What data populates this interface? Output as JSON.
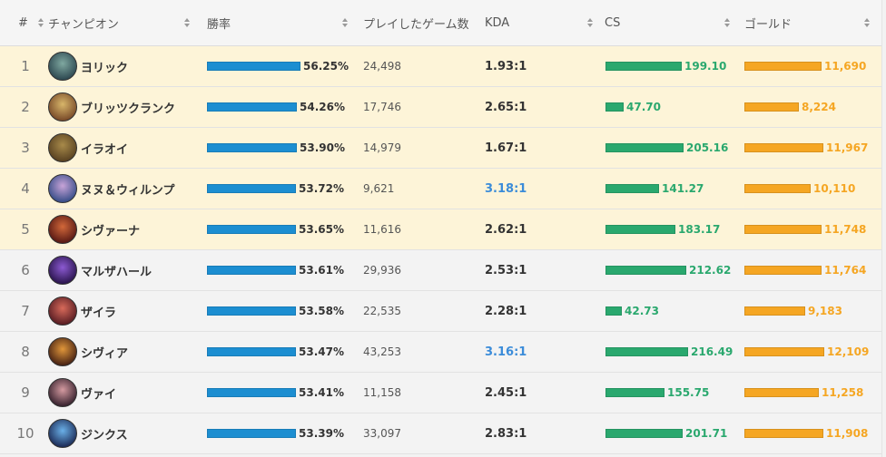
{
  "header": {
    "rank": "#",
    "champion": "チャンピオン",
    "winrate": "勝率",
    "games": "プレイしたゲーム数",
    "kda": "KDA",
    "cs": "CS",
    "gold": "ゴールド"
  },
  "colors": {
    "winrate_bar": "#1c8ed1",
    "cs_bar": "#2aa86e",
    "gold_bar": "#f5a623",
    "kda_highlight": "#3b8cd9",
    "top_row_bg": "#fdf4d8"
  },
  "rows": [
    {
      "rank": "1",
      "name": "ヨリック",
      "winrate": "56.25%",
      "winrate_value": 56.25,
      "games": "24,498",
      "kda": "1.93:1",
      "kda_highlight": false,
      "cs": "199.10",
      "cs_value": 199.1,
      "gold": "11,690",
      "gold_value": 11690,
      "avatar_colors": [
        "#2f4a52",
        "#7fa8a0"
      ]
    },
    {
      "rank": "2",
      "name": "ブリッツクランク",
      "winrate": "54.26%",
      "winrate_value": 54.26,
      "games": "17,746",
      "kda": "2.65:1",
      "kda_highlight": false,
      "cs": "47.70",
      "cs_value": 47.7,
      "gold": "8,224",
      "gold_value": 8224,
      "avatar_colors": [
        "#7a4c2a",
        "#d8b66a"
      ]
    },
    {
      "rank": "3",
      "name": "イラオイ",
      "winrate": "53.90%",
      "winrate_value": 53.9,
      "games": "14,979",
      "kda": "1.67:1",
      "kda_highlight": false,
      "cs": "205.16",
      "cs_value": 205.16,
      "gold": "11,967",
      "gold_value": 11967,
      "avatar_colors": [
        "#5a4322",
        "#a88a4a"
      ]
    },
    {
      "rank": "4",
      "name": "ヌヌ＆ウィルンプ",
      "winrate": "53.72%",
      "winrate_value": 53.72,
      "games": "9,621",
      "kda": "3.18:1",
      "kda_highlight": true,
      "cs": "141.27",
      "cs_value": 141.27,
      "gold": "10,110",
      "gold_value": 10110,
      "avatar_colors": [
        "#3a4f8a",
        "#c8a4d8"
      ]
    },
    {
      "rank": "5",
      "name": "シヴァーナ",
      "winrate": "53.65%",
      "winrate_value": 53.65,
      "games": "11,616",
      "kda": "2.62:1",
      "kda_highlight": false,
      "cs": "183.17",
      "cs_value": 183.17,
      "gold": "11,748",
      "gold_value": 11748,
      "avatar_colors": [
        "#5a1a14",
        "#d2683a"
      ]
    },
    {
      "rank": "6",
      "name": "マルザハール",
      "winrate": "53.61%",
      "winrate_value": 53.61,
      "games": "29,936",
      "kda": "2.53:1",
      "kda_highlight": false,
      "cs": "212.62",
      "cs_value": 212.62,
      "gold": "11,764",
      "gold_value": 11764,
      "avatar_colors": [
        "#2c1650",
        "#8c5ad2"
      ]
    },
    {
      "rank": "7",
      "name": "ザイラ",
      "winrate": "53.58%",
      "winrate_value": 53.58,
      "games": "22,535",
      "kda": "2.28:1",
      "kda_highlight": false,
      "cs": "42.73",
      "cs_value": 42.73,
      "gold": "9,183",
      "gold_value": 9183,
      "avatar_colors": [
        "#5a1e24",
        "#d86a5a"
      ]
    },
    {
      "rank": "8",
      "name": "シヴィア",
      "winrate": "53.47%",
      "winrate_value": 53.47,
      "games": "43,253",
      "kda": "3.16:1",
      "kda_highlight": true,
      "cs": "216.49",
      "cs_value": 216.49,
      "gold": "12,109",
      "gold_value": 12109,
      "avatar_colors": [
        "#4a2414",
        "#e0963a"
      ]
    },
    {
      "rank": "9",
      "name": "ヴァイ",
      "winrate": "53.41%",
      "winrate_value": 53.41,
      "games": "11,158",
      "kda": "2.45:1",
      "kda_highlight": false,
      "cs": "155.75",
      "cs_value": 155.75,
      "gold": "11,258",
      "gold_value": 11258,
      "avatar_colors": [
        "#3a2430",
        "#d49aa0"
      ]
    },
    {
      "rank": "10",
      "name": "ジンクス",
      "winrate": "53.39%",
      "winrate_value": 53.39,
      "games": "33,097",
      "kda": "2.83:1",
      "kda_highlight": false,
      "cs": "201.71",
      "cs_value": 201.71,
      "gold": "11,908",
      "gold_value": 11908,
      "avatar_colors": [
        "#1e2e5a",
        "#6ab0e8"
      ]
    }
  ]
}
